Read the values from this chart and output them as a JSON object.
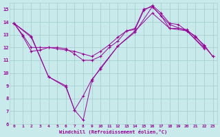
{
  "background_color": "#c8eaea",
  "grid_color": "#a8d0d0",
  "line_color": "#990099",
  "marker": "+",
  "xlabel": "Windchill (Refroidissement éolien,°C)",
  "xlabel_color": "#990099",
  "xlim": [
    -0.5,
    23.5
  ],
  "ylim": [
    6,
    15.5
  ],
  "yticks": [
    6,
    7,
    8,
    9,
    10,
    11,
    12,
    13,
    14,
    15
  ],
  "xticks": [
    0,
    1,
    2,
    3,
    4,
    5,
    6,
    7,
    8,
    9,
    10,
    11,
    12,
    13,
    14,
    15,
    16,
    17,
    18,
    19,
    20,
    21,
    22,
    23
  ],
  "lines": [
    {
      "x": [
        0,
        1,
        2,
        3,
        4,
        5,
        6,
        7,
        8,
        9,
        10,
        11,
        12,
        13,
        14,
        15,
        16,
        17,
        18,
        19,
        20,
        21,
        22,
        23
      ],
      "y": [
        13.9,
        12.9,
        11.7,
        11.8,
        12.0,
        12.0,
        11.9,
        11.5,
        11.0,
        11.0,
        11.3,
        12.0,
        12.5,
        13.3,
        13.4,
        14.9,
        15.3,
        14.7,
        13.9,
        13.8,
        13.3,
        12.9,
        12.1,
        11.3
      ]
    },
    {
      "x": [
        0,
        1,
        2,
        3,
        4,
        5,
        6,
        7,
        8,
        9,
        10,
        11,
        12,
        13,
        14,
        15,
        16,
        17,
        18,
        19,
        20,
        21,
        22,
        23
      ],
      "y": [
        13.9,
        13.0,
        12.0,
        12.0,
        12.0,
        11.9,
        11.8,
        11.7,
        11.5,
        11.3,
        11.7,
        12.2,
        12.8,
        13.3,
        13.5,
        15.0,
        15.2,
        14.5,
        13.5,
        13.5,
        13.4,
        12.8,
        12.2,
        11.3
      ]
    },
    {
      "x": [
        0,
        2,
        4,
        6,
        7,
        8,
        9,
        10,
        12,
        14,
        16,
        18,
        20,
        22
      ],
      "y": [
        13.9,
        12.9,
        9.7,
        9.0,
        7.1,
        8.2,
        9.5,
        10.3,
        12.1,
        13.2,
        15.2,
        13.8,
        13.3,
        12.0
      ]
    },
    {
      "x": [
        0,
        2,
        4,
        6,
        7,
        8,
        9,
        10,
        12,
        14,
        16,
        18,
        20,
        22
      ],
      "y": [
        13.9,
        12.8,
        9.7,
        8.9,
        7.1,
        6.3,
        9.4,
        10.4,
        12.1,
        13.3,
        14.7,
        13.5,
        13.3,
        11.9
      ]
    }
  ]
}
